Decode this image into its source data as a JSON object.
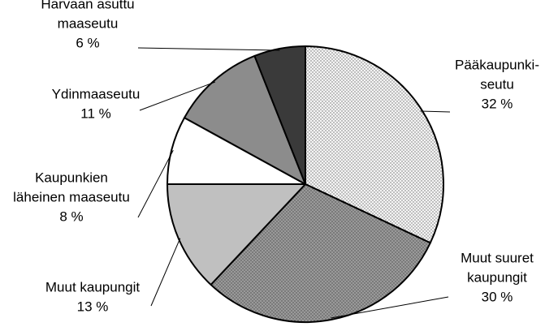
{
  "chart_data": {
    "type": "pie",
    "title": "",
    "start": "12 o'clock",
    "direction": "clockwise",
    "slices": [
      {
        "id": "paakaupunkiseutu",
        "label_lines": [
          "Pääkaupunki-",
          "seutu"
        ],
        "value": 32,
        "value_label": "32 %",
        "fill": "dotted-light"
      },
      {
        "id": "muut-suuret",
        "label_lines": [
          "Muut suuret",
          "kaupungit"
        ],
        "value": 30,
        "value_label": "30 %",
        "fill": "dotted-dark"
      },
      {
        "id": "muut-kaupungit",
        "label_lines": [
          "Muut kaupungit"
        ],
        "value": 13,
        "value_label": "13 %",
        "fill": "#c0c0c0"
      },
      {
        "id": "kaupunkien-laheinen",
        "label_lines": [
          "Kaupunkien",
          "läheinen maaseutu"
        ],
        "value": 8,
        "value_label": "8 %",
        "fill": "#ffffff"
      },
      {
        "id": "ydinmaaseutu",
        "label_lines": [
          "Ydinmaaseutu"
        ],
        "value": 11,
        "value_label": "11 %",
        "fill": "#8c8c8c"
      },
      {
        "id": "harvaan-asuttu",
        "label_lines": [
          "Harvaan asuttu",
          "maaseutu"
        ],
        "value": 6,
        "value_label": "6 %",
        "fill": "#3a3a3a"
      }
    ]
  }
}
